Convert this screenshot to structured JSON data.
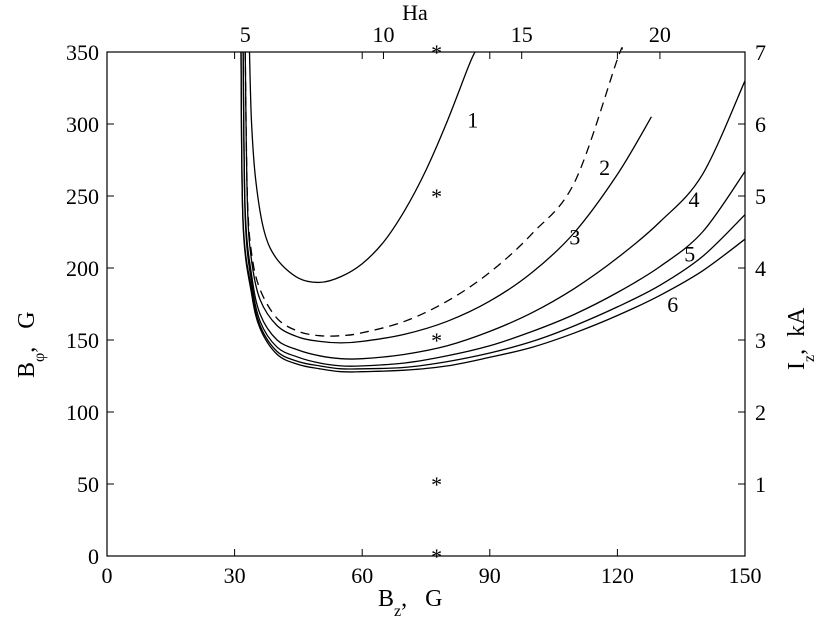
{
  "chart_data": {
    "type": "line",
    "xlabel": "B",
    "xlabel_sub": "z",
    "xlabel_unit": ",   G",
    "ylabel": "B",
    "ylabel_sub": "φ",
    "ylabel_unit": ",   G",
    "top_label": "Ha",
    "right_label": "I",
    "right_label_sub": "z",
    "right_label_unit": ",  kA",
    "xlim": [
      0,
      150
    ],
    "ylim": [
      0,
      350
    ],
    "x_ticks": [
      0,
      30,
      60,
      90,
      120,
      150
    ],
    "y_ticks": [
      0,
      50,
      100,
      150,
      200,
      250,
      300,
      350
    ],
    "top_ticks": [
      {
        "label": "5",
        "bz": 32.5
      },
      {
        "label": "10",
        "bz": 65
      },
      {
        "label": "15",
        "bz": 97.5
      },
      {
        "label": "20",
        "bz": 130
      }
    ],
    "right_ticks": [
      "1",
      "2",
      "3",
      "4",
      "5",
      "6",
      "7"
    ],
    "right_per_unit": 50,
    "grid": false,
    "series": [
      {
        "name": "1",
        "style": "solid",
        "x": [
          33.5,
          34,
          35,
          37,
          40,
          45,
          50,
          55,
          60,
          65,
          70,
          75,
          80,
          85,
          86.5
        ],
        "y": [
          350,
          300,
          260,
          225,
          206,
          193,
          190,
          194,
          203,
          218,
          240,
          268,
          302,
          340,
          350
        ]
      },
      {
        "name": "",
        "style": "dashed",
        "x": [
          32.5,
          33,
          34,
          36,
          40,
          45,
          50,
          55,
          60,
          70,
          80,
          90,
          100,
          110,
          120,
          121
        ],
        "y": [
          350,
          250,
          210,
          185,
          165,
          156,
          153,
          153,
          155,
          163,
          177,
          197,
          224,
          260,
          345,
          350
        ]
      },
      {
        "name": "2",
        "style": "solid",
        "x": [
          32.5,
          33,
          34,
          36,
          40,
          45,
          50,
          55,
          60,
          70,
          80,
          90,
          100,
          110,
          120,
          128
        ],
        "y": [
          350,
          245,
          205,
          178,
          160,
          152,
          149,
          148,
          149,
          154,
          163,
          177,
          197,
          225,
          265,
          305
        ]
      },
      {
        "name": "3",
        "style": "solid",
        "x": [
          32,
          32.5,
          34,
          36,
          40,
          45,
          50,
          55,
          60,
          70,
          80,
          90,
          100,
          110,
          120,
          130,
          140,
          150
        ],
        "y": [
          350,
          240,
          195,
          168,
          150,
          143,
          139,
          137,
          137,
          140,
          146,
          156,
          169,
          186,
          207,
          232,
          265,
          330
        ]
      },
      {
        "name": "4",
        "style": "solid",
        "x": [
          32,
          32.5,
          34,
          36,
          40,
          45,
          50,
          55,
          60,
          70,
          80,
          90,
          100,
          110,
          120,
          130,
          140,
          150
        ],
        "y": [
          350,
          235,
          190,
          163,
          145,
          138,
          134,
          132,
          132,
          134,
          139,
          146,
          156,
          168,
          183,
          201,
          225,
          267
        ]
      },
      {
        "name": "5",
        "style": "solid",
        "x": [
          31.5,
          32,
          34,
          36,
          40,
          45,
          50,
          55,
          60,
          70,
          80,
          90,
          100,
          110,
          120,
          130,
          140,
          150
        ],
        "y": [
          350,
          232,
          185,
          160,
          142,
          135,
          132,
          130,
          130,
          131,
          135,
          141,
          149,
          160,
          173,
          188,
          208,
          237
        ]
      },
      {
        "name": "6",
        "style": "solid",
        "x": [
          31.5,
          32,
          34,
          36,
          40,
          45,
          50,
          55,
          60,
          70,
          80,
          90,
          100,
          110,
          120,
          130,
          140,
          150
        ],
        "y": [
          350,
          230,
          182,
          158,
          140,
          133,
          130,
          128,
          128,
          129,
          132,
          138,
          145,
          155,
          167,
          181,
          198,
          220
        ]
      }
    ],
    "curve_labels": [
      {
        "text": "1",
        "x": 86,
        "y": 303
      },
      {
        "text": "2",
        "x": 117,
        "y": 270
      },
      {
        "text": "3",
        "x": 110,
        "y": 222
      },
      {
        "text": "4",
        "x": 138,
        "y": 248
      },
      {
        "text": "5",
        "x": 137,
        "y": 210
      },
      {
        "text": "6",
        "x": 133,
        "y": 175
      }
    ],
    "markers": {
      "symbol": "*",
      "x": 77.5,
      "y": [
        0,
        50,
        150,
        250,
        350
      ]
    }
  }
}
